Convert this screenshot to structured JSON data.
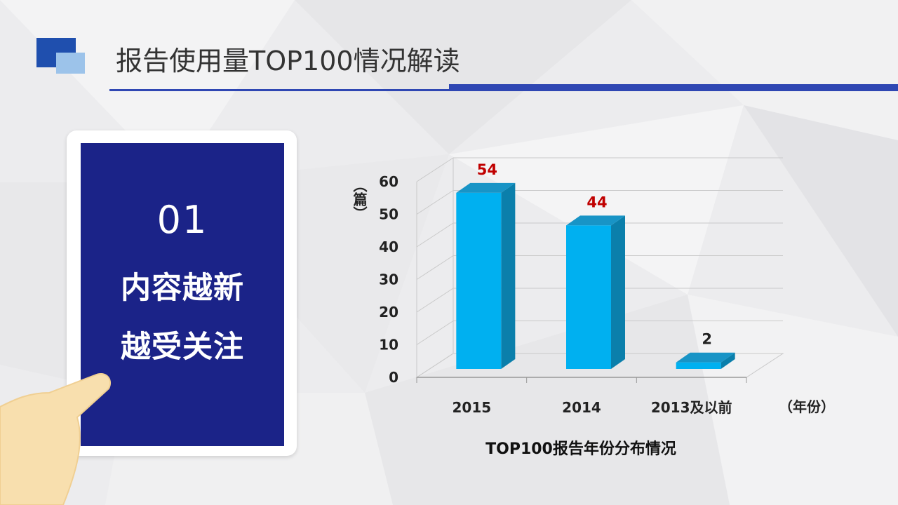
{
  "header": {
    "title": "报告使用量TOP100情况解读"
  },
  "card": {
    "number": "01",
    "line1": "内容越新",
    "line2": "越受关注"
  },
  "colors": {
    "accent": "#2f47b3",
    "card": "#1b2388",
    "bar": "#00b0f0",
    "label": "#c00000"
  },
  "chart_data": {
    "type": "bar",
    "title": "TOP100报告年份分布情况",
    "categories": [
      "2015",
      "2014",
      "2013及以前"
    ],
    "values": [
      54,
      44,
      2
    ],
    "ylabel": "（篇）",
    "xlabel": "（年份）",
    "ylim": [
      0,
      60
    ],
    "yticks": [
      0,
      10,
      20,
      30,
      40,
      50,
      60
    ],
    "grid": true,
    "data_label_colors": [
      "#c00000",
      "#c00000",
      "#222222"
    ]
  }
}
